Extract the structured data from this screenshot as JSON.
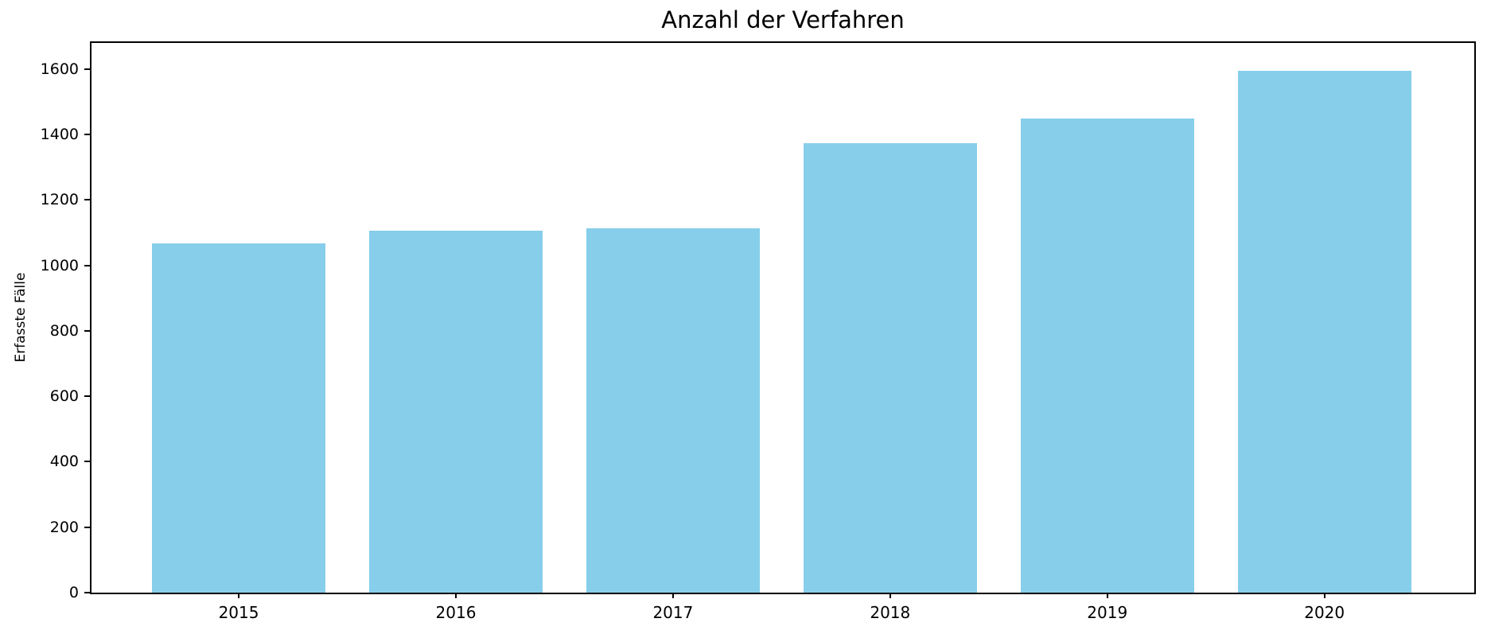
{
  "figure": {
    "background_color": "#ffffff"
  },
  "chart_data": {
    "type": "bar",
    "title": "Anzahl der Verfahren",
    "xlabel": "",
    "ylabel": "Erfasste Fälle",
    "categories": [
      "2015",
      "2016",
      "2017",
      "2018",
      "2019",
      "2020"
    ],
    "values": [
      1068,
      1107,
      1114,
      1374,
      1448,
      1595
    ],
    "yticks": [
      0,
      200,
      400,
      600,
      800,
      1000,
      1200,
      1400,
      1600
    ],
    "ylim": [
      0,
      1680
    ],
    "bar_color": "#87CEEB",
    "axis_color": "#000000",
    "grid": false,
    "legend_position": "none"
  }
}
